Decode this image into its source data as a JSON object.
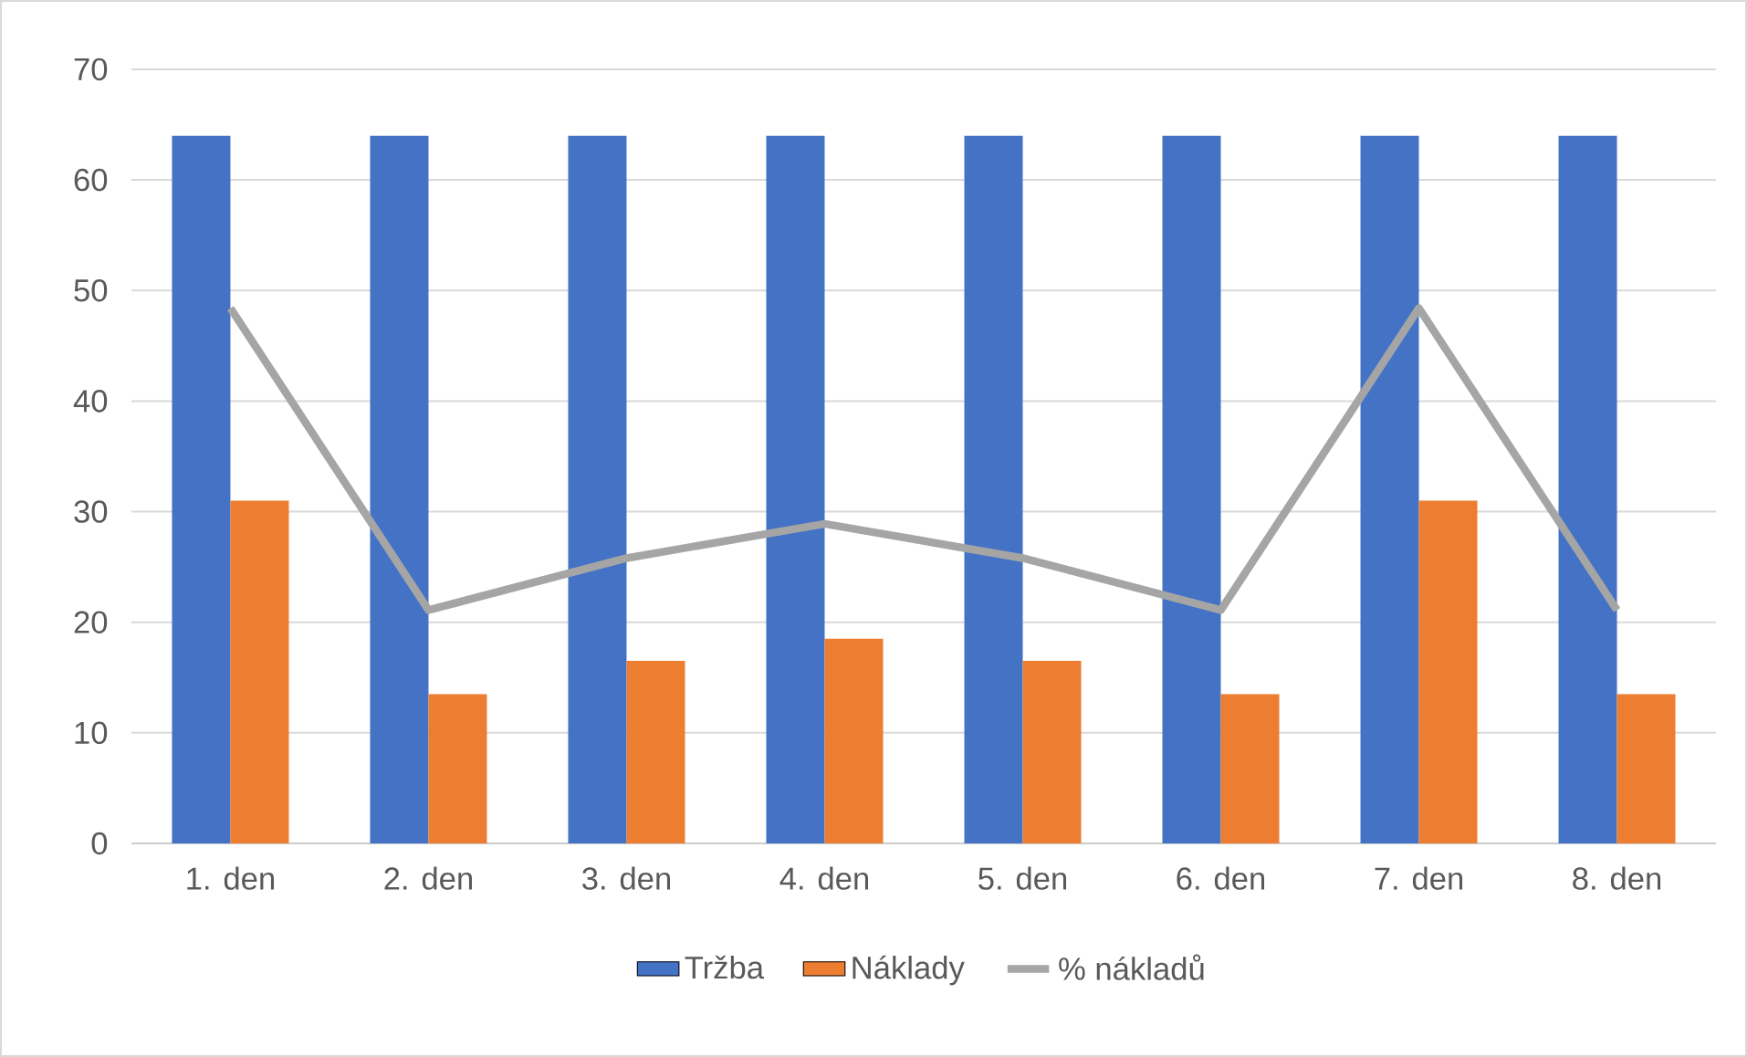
{
  "chart_data": {
    "type": "bar",
    "categories": [
      "1. den",
      "2. den",
      "3. den",
      "4. den",
      "5. den",
      "6. den",
      "7. den",
      "8. den"
    ],
    "series": [
      {
        "name": "Tržba",
        "color": "#4472c4",
        "values": [
          64,
          64,
          64,
          64,
          64,
          64,
          64,
          64
        ]
      },
      {
        "name": "Náklady",
        "color": "#ed7d31",
        "values": [
          31,
          13.5,
          16.5,
          18.5,
          16.5,
          13.5,
          31,
          13.5
        ]
      },
      {
        "name": "% nákladů",
        "type": "line",
        "color": "#a5a5a5",
        "values": [
          48.4,
          21.1,
          25.8,
          28.9,
          25.8,
          21.1,
          48.4,
          21.1
        ]
      }
    ],
    "ylim": [
      0,
      70
    ],
    "yticks": [
      0,
      10,
      20,
      30,
      40,
      50,
      60,
      70
    ],
    "grid": "y",
    "legend": "bottom",
    "marker": "none"
  }
}
